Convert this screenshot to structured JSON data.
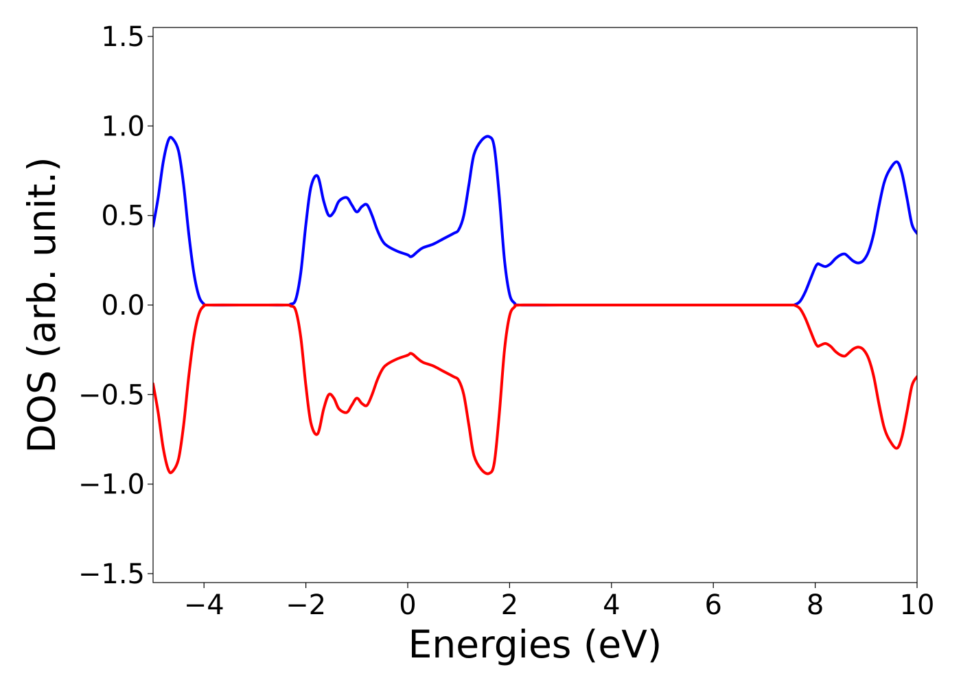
{
  "chart_data": {
    "type": "line",
    "title": "",
    "xlabel": "Energies (eV)",
    "ylabel": "DOS (arb. unit.)",
    "xlim": [
      -5,
      10
    ],
    "ylim": [
      -1.55,
      1.55
    ],
    "xticks": [
      -4,
      -2,
      0,
      2,
      4,
      6,
      8,
      10
    ],
    "xtick_labels": [
      "−4",
      "−2",
      "0",
      "2",
      "4",
      "6",
      "8",
      "10"
    ],
    "yticks": [
      1.5,
      1.0,
      0.5,
      0.0,
      -0.5,
      -1.0,
      -1.5
    ],
    "ytick_labels": [
      "1.5",
      "1.0",
      "0.5",
      "0.0",
      "−0.5",
      "−1.0",
      "−1.5"
    ],
    "grid": false,
    "legend": "none",
    "series": [
      {
        "color": "#0000ff",
        "x": [
          -5.0,
          -4.9,
          -4.8,
          -4.7,
          -4.62,
          -4.5,
          -4.4,
          -4.3,
          -4.2,
          -4.1,
          -4.0,
          -3.9,
          -3.0,
          -2.4,
          -2.3,
          -2.2,
          -2.1,
          -2.0,
          -1.9,
          -1.77,
          -1.65,
          -1.55,
          -1.45,
          -1.35,
          -1.2,
          -1.1,
          -1.0,
          -0.9,
          -0.8,
          -0.7,
          -0.6,
          -0.5,
          -0.4,
          -0.2,
          0.0,
          0.05,
          0.1,
          0.2,
          0.3,
          0.5,
          0.7,
          0.9,
          1.0,
          1.1,
          1.2,
          1.3,
          1.45,
          1.6,
          1.7,
          1.8,
          1.9,
          2.0,
          2.1,
          2.2,
          3.0,
          5.0,
          7.0,
          7.5,
          7.6,
          7.7,
          7.8,
          7.9,
          8.0,
          8.05,
          8.1,
          8.2,
          8.3,
          8.4,
          8.5,
          8.58,
          8.65,
          8.75,
          8.85,
          8.95,
          9.05,
          9.15,
          9.25,
          9.35,
          9.45,
          9.6,
          9.7,
          9.8,
          9.9,
          10.0
        ],
        "y": [
          0.44,
          0.6,
          0.8,
          0.92,
          0.93,
          0.86,
          0.67,
          0.4,
          0.18,
          0.05,
          0.005,
          0.0,
          0.0,
          0.0,
          0.005,
          0.03,
          0.18,
          0.45,
          0.66,
          0.72,
          0.58,
          0.5,
          0.52,
          0.58,
          0.6,
          0.56,
          0.52,
          0.55,
          0.56,
          0.5,
          0.42,
          0.36,
          0.33,
          0.3,
          0.28,
          0.27,
          0.275,
          0.3,
          0.32,
          0.34,
          0.37,
          0.4,
          0.42,
          0.5,
          0.67,
          0.84,
          0.92,
          0.94,
          0.88,
          0.6,
          0.25,
          0.06,
          0.01,
          0.0,
          0.0,
          0.0,
          0.0,
          0.0,
          0.002,
          0.02,
          0.07,
          0.14,
          0.21,
          0.23,
          0.225,
          0.215,
          0.23,
          0.26,
          0.28,
          0.285,
          0.27,
          0.245,
          0.235,
          0.25,
          0.3,
          0.4,
          0.55,
          0.68,
          0.75,
          0.8,
          0.74,
          0.6,
          0.45,
          0.4
        ]
      },
      {
        "color": "#ff0000",
        "x": [
          -5.0,
          -4.9,
          -4.8,
          -4.7,
          -4.62,
          -4.5,
          -4.4,
          -4.3,
          -4.2,
          -4.1,
          -4.0,
          -3.9,
          -3.0,
          -2.4,
          -2.3,
          -2.2,
          -2.1,
          -2.0,
          -1.9,
          -1.77,
          -1.65,
          -1.55,
          -1.45,
          -1.35,
          -1.2,
          -1.1,
          -1.0,
          -0.9,
          -0.8,
          -0.7,
          -0.6,
          -0.5,
          -0.4,
          -0.2,
          0.0,
          0.05,
          0.1,
          0.2,
          0.3,
          0.5,
          0.7,
          0.9,
          1.0,
          1.1,
          1.2,
          1.3,
          1.45,
          1.6,
          1.7,
          1.8,
          1.9,
          2.0,
          2.1,
          2.2,
          3.0,
          5.0,
          7.0,
          7.5,
          7.6,
          7.7,
          7.8,
          7.9,
          8.0,
          8.05,
          8.1,
          8.2,
          8.3,
          8.4,
          8.5,
          8.58,
          8.65,
          8.75,
          8.85,
          8.95,
          9.05,
          9.15,
          9.25,
          9.35,
          9.45,
          9.6,
          9.7,
          9.8,
          9.9,
          10.0
        ],
        "y": [
          -0.44,
          -0.6,
          -0.8,
          -0.92,
          -0.93,
          -0.86,
          -0.67,
          -0.4,
          -0.18,
          -0.05,
          -0.005,
          0.0,
          0.0,
          0.0,
          -0.005,
          -0.03,
          -0.18,
          -0.45,
          -0.66,
          -0.72,
          -0.58,
          -0.5,
          -0.52,
          -0.58,
          -0.6,
          -0.56,
          -0.52,
          -0.55,
          -0.56,
          -0.5,
          -0.42,
          -0.36,
          -0.33,
          -0.3,
          -0.28,
          -0.27,
          -0.275,
          -0.3,
          -0.32,
          -0.34,
          -0.37,
          -0.4,
          -0.42,
          -0.5,
          -0.67,
          -0.84,
          -0.92,
          -0.94,
          -0.88,
          -0.6,
          -0.25,
          -0.06,
          -0.01,
          0.0,
          0.0,
          0.0,
          0.0,
          0.0,
          -0.002,
          -0.02,
          -0.07,
          -0.14,
          -0.21,
          -0.23,
          -0.225,
          -0.215,
          -0.23,
          -0.26,
          -0.28,
          -0.285,
          -0.27,
          -0.245,
          -0.235,
          -0.25,
          -0.3,
          -0.4,
          -0.55,
          -0.68,
          -0.75,
          -0.8,
          -0.74,
          -0.6,
          -0.45,
          -0.4
        ]
      }
    ]
  }
}
